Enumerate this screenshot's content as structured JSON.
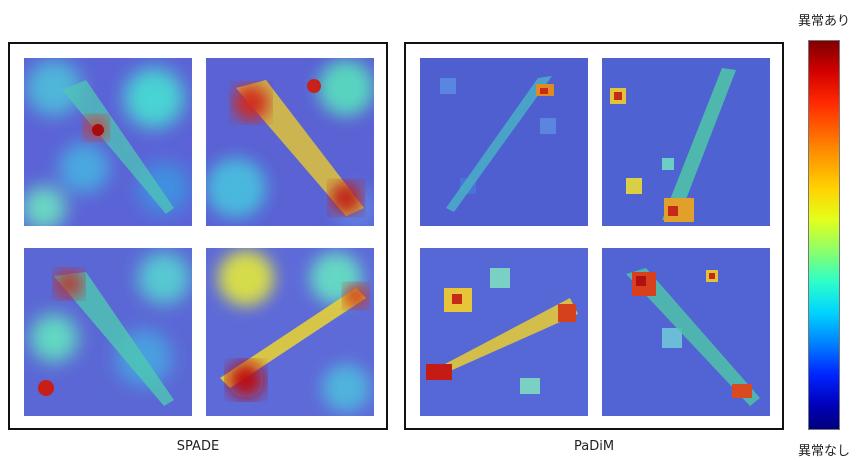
{
  "panels": [
    {
      "title": "SPADE",
      "tiles": [
        "spade-tile-1",
        "spade-tile-2",
        "spade-tile-3",
        "spade-tile-4"
      ]
    },
    {
      "title": "PaDiM",
      "tiles": [
        "padim-tile-1",
        "padim-tile-2",
        "padim-tile-3",
        "padim-tile-4"
      ]
    }
  ],
  "colorbar": {
    "top_label": "異常あり",
    "bottom_label": "異常なし",
    "colors": [
      "#7f0000",
      "#ff2a00",
      "#ffd200",
      "#8dff69",
      "#00d4ff",
      "#0024ff",
      "#00007f"
    ]
  }
}
